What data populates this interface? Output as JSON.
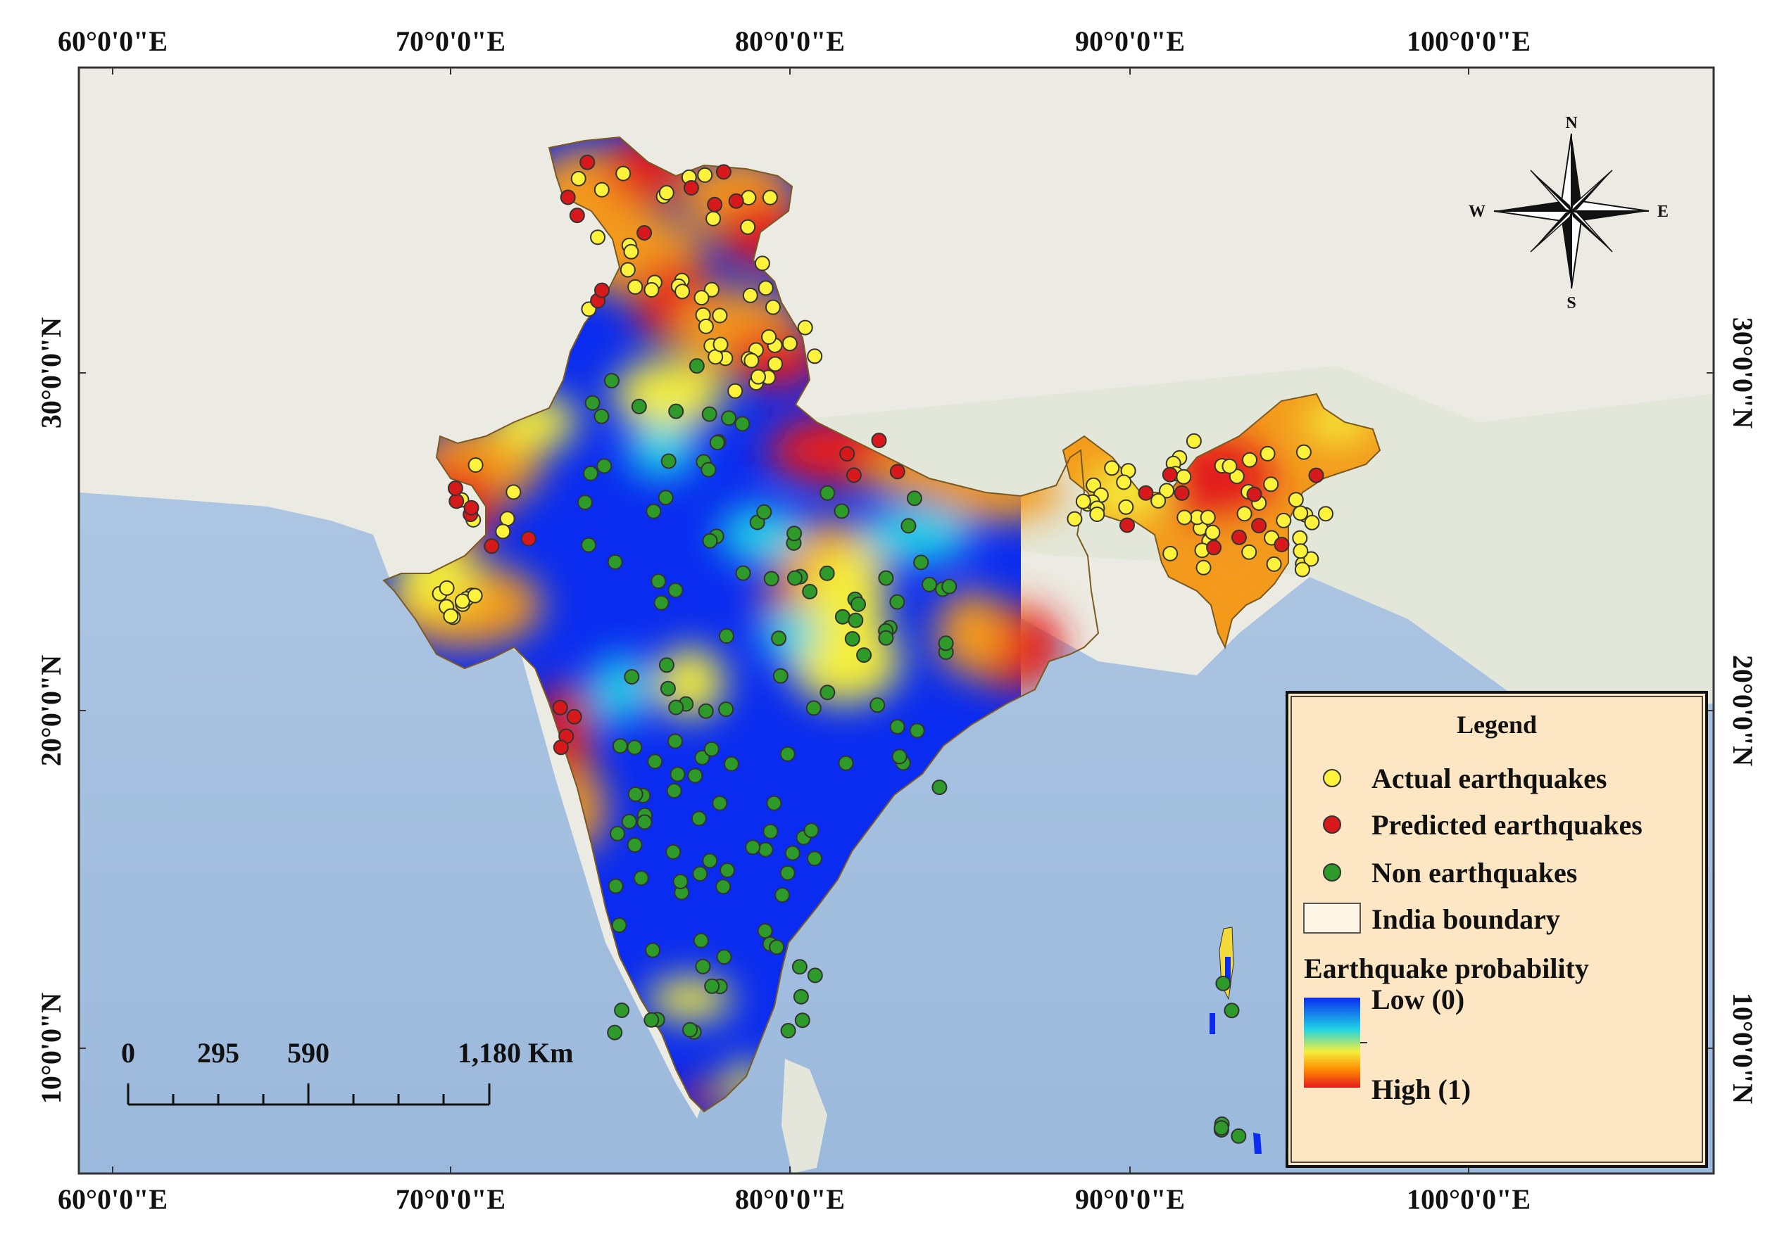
{
  "map": {
    "longitude_labels": [
      "60°0'0\"E",
      "70°0'0\"E",
      "80°0'0\"E",
      "90°0'0\"E",
      "100°0'0\"E"
    ],
    "latitude_labels": [
      "30°0'0\"N",
      "20°0'0\"N",
      "10°0'0\"N"
    ],
    "colors": {
      "sea": "#a9c4e0",
      "land": "#ecebe3",
      "low": "#0a2cf0",
      "mid": "#f4ee3a",
      "high": "#e31a1c",
      "actual_point": "#fff23a",
      "predicted_point": "#d7191c",
      "non_point": "#2e9a2a",
      "legend_bg": "#fde6c4"
    }
  },
  "compass": {
    "n": "N",
    "s": "S",
    "e": "E",
    "w": "W"
  },
  "scale_bar": {
    "labels": [
      "0",
      "295",
      "590",
      "1,180"
    ],
    "unit": "Km"
  },
  "legend": {
    "title": "Legend",
    "items": [
      {
        "label": "Actual earthquakes",
        "icon": "yellow-circle-icon"
      },
      {
        "label": "Predicted earthquakes",
        "icon": "red-circle-icon"
      },
      {
        "label": "Non earthquakes",
        "icon": "green-circle-icon"
      },
      {
        "label": "India boundary",
        "icon": "outline-box-icon"
      }
    ],
    "probability_title": "Earthquake probability",
    "low_label": "Low (0)",
    "high_label": "High (1)"
  }
}
